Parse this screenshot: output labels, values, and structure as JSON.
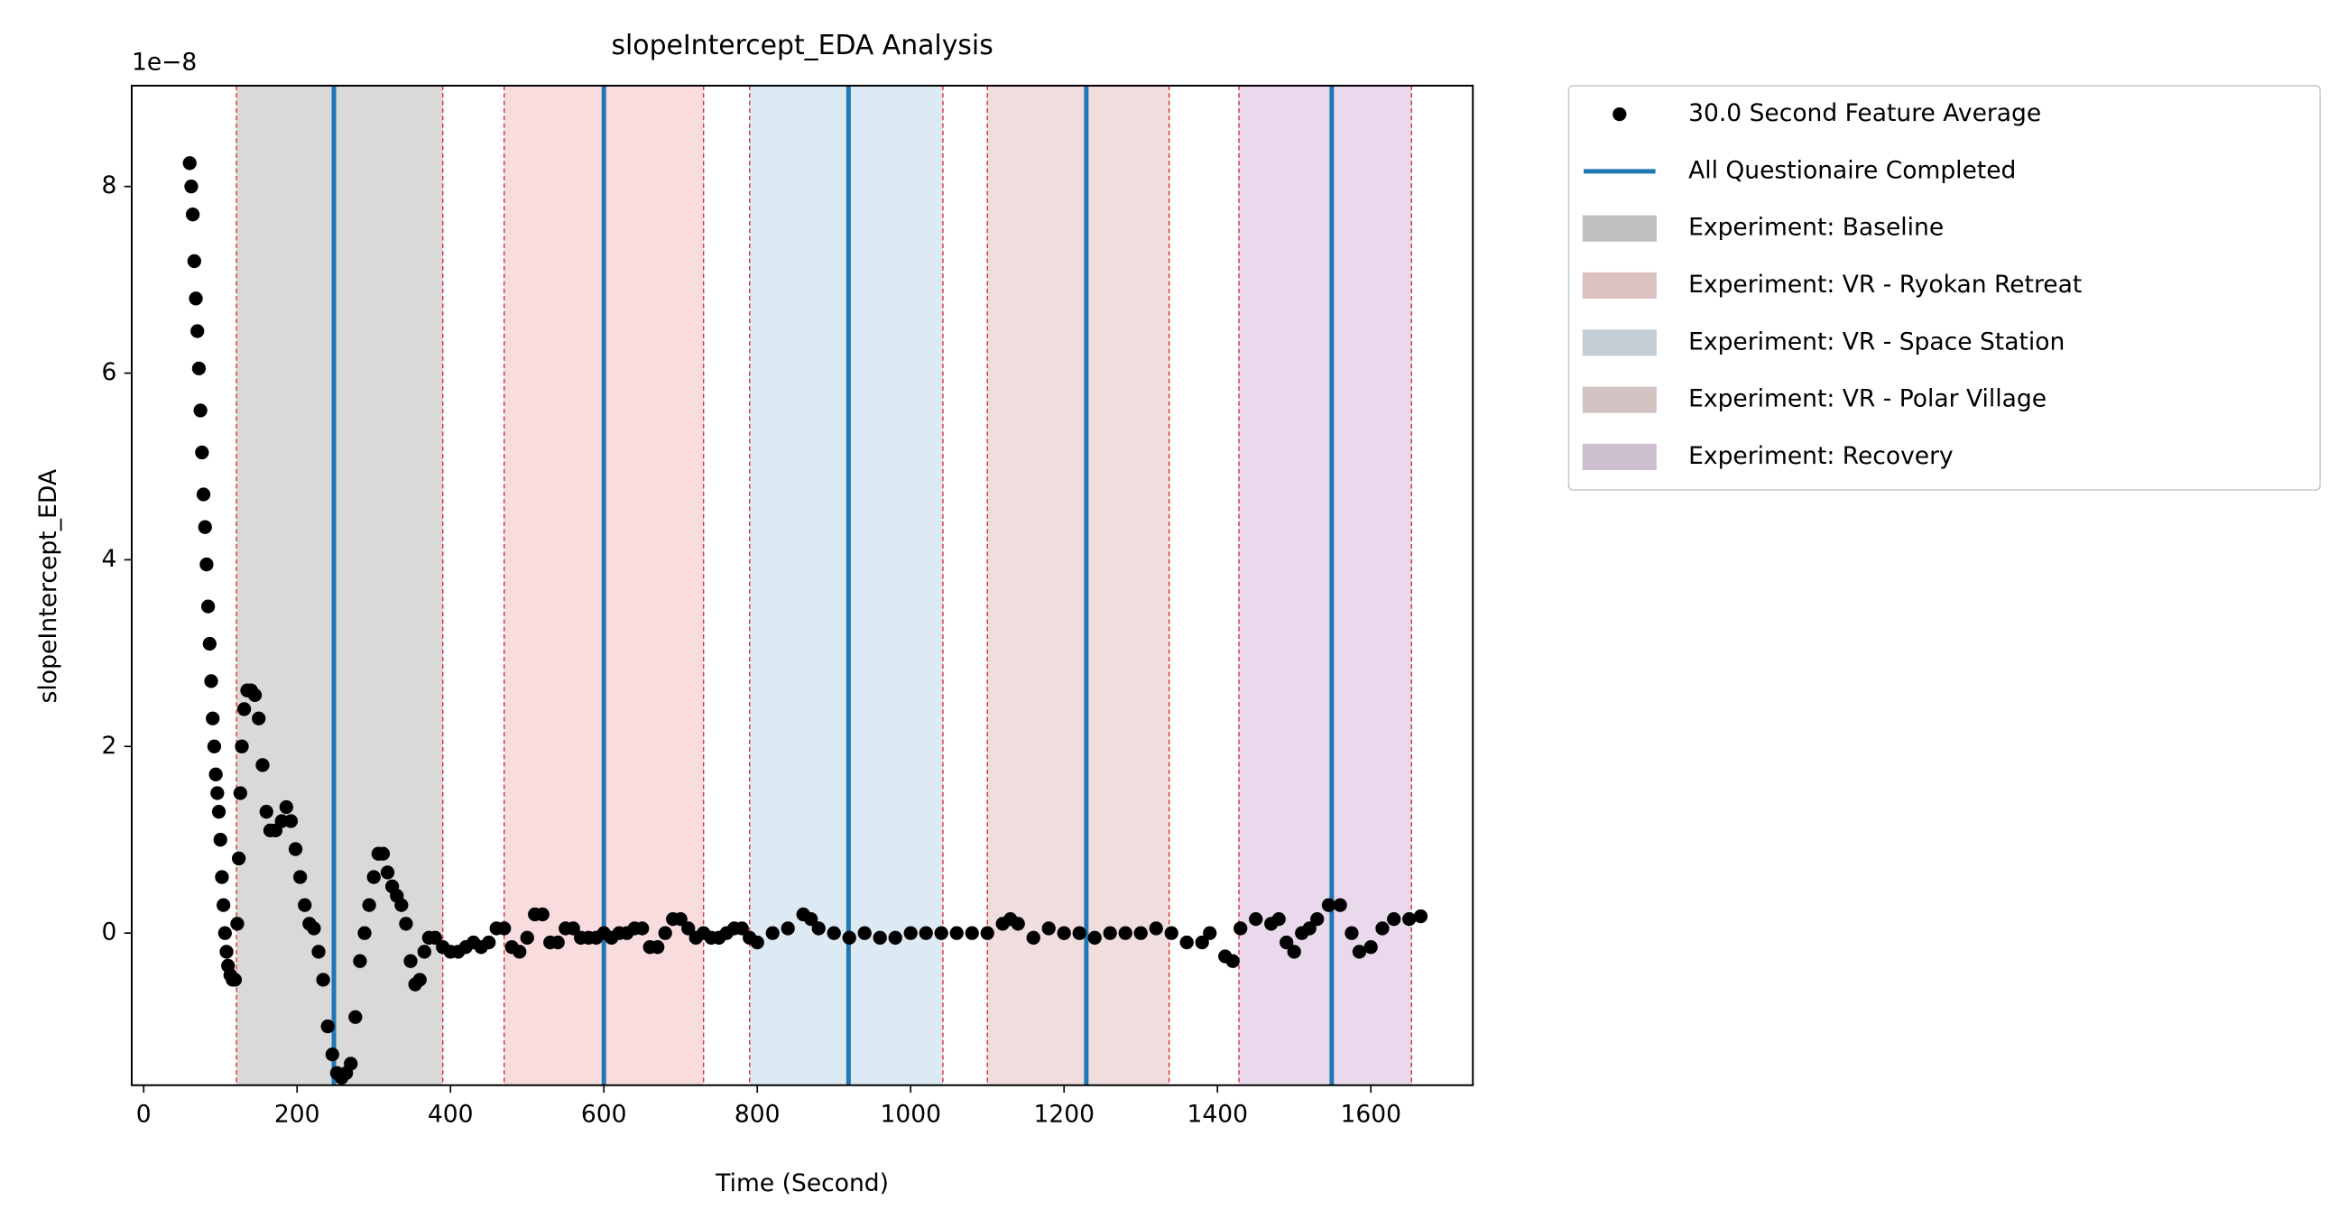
{
  "chart_data": {
    "type": "scatter",
    "title": "slopeIntercept_EDA Analysis",
    "xlabel": "Time (Second)",
    "ylabel": "slopeIntercept_EDA",
    "offset_label": "1e−8",
    "xlim": [
      -15.6,
      1733
    ],
    "ylim": [
      -1.63,
      9.08
    ],
    "xticks": [
      0,
      200,
      400,
      600,
      800,
      1000,
      1200,
      1400,
      1600
    ],
    "yticks": [
      0,
      2,
      4,
      6,
      8
    ],
    "spans": [
      {
        "name": "Experiment: Baseline",
        "color": "#d9d9d9",
        "x": [
          121,
          390
        ]
      },
      {
        "name": "Experiment: VR - Ryokan Retreat",
        "color": "#f9dcdd",
        "x": [
          470,
          730
        ]
      },
      {
        "name": "Experiment: VR - Space Station",
        "color": "#dde9f3",
        "x": [
          790,
          1042
        ]
      },
      {
        "name": "Experiment: VR - Polar Village",
        "color": "#efdedd",
        "x": [
          1100,
          1337
        ]
      },
      {
        "name": "Experiment: Recovery",
        "color": "#ead9ec",
        "x": [
          1428,
          1653
        ]
      }
    ],
    "span_edge_color": "#d62728",
    "vlines": {
      "name": "All Questionaire Completed",
      "color": "#1f77b4",
      "x": [
        248,
        600,
        919,
        1229,
        1549
      ]
    },
    "series": [
      {
        "name": "30.0 Second Feature Average",
        "color": "#000000",
        "x": [
          60,
          62,
          64,
          66,
          68,
          70,
          72,
          74,
          76,
          78,
          80,
          82,
          84,
          86,
          88,
          90,
          92,
          94,
          96,
          98,
          100,
          102,
          104,
          106,
          108,
          110,
          113,
          116,
          119,
          122,
          124,
          126,
          128,
          131,
          135,
          140,
          145,
          150,
          155,
          160,
          165,
          172,
          180,
          186,
          192,
          198,
          204,
          210,
          216,
          222,
          228,
          234,
          240,
          246,
          252,
          258,
          264,
          270,
          276,
          282,
          288,
          294,
          300,
          306,
          312,
          318,
          324,
          330,
          336,
          342,
          348,
          354,
          360,
          366,
          372,
          380,
          390,
          400,
          410,
          420,
          430,
          440,
          450,
          460,
          470,
          480,
          490,
          500,
          510,
          520,
          530,
          540,
          550,
          560,
          570,
          580,
          590,
          600,
          610,
          620,
          630,
          640,
          650,
          660,
          670,
          680,
          690,
          700,
          710,
          720,
          730,
          740,
          750,
          760,
          770,
          780,
          790,
          800,
          820,
          840,
          860,
          870,
          880,
          900,
          920,
          940,
          960,
          980,
          1000,
          1020,
          1040,
          1060,
          1080,
          1100,
          1120,
          1130,
          1140,
          1160,
          1180,
          1200,
          1220,
          1240,
          1260,
          1280,
          1300,
          1320,
          1340,
          1360,
          1380,
          1390,
          1410,
          1420,
          1430,
          1450,
          1470,
          1480,
          1490,
          1500,
          1510,
          1520,
          1530,
          1545,
          1560,
          1575,
          1585,
          1600,
          1615,
          1630,
          1650,
          1665
        ],
        "values": [
          8.25,
          8.0,
          7.7,
          7.2,
          6.8,
          6.45,
          6.05,
          5.6,
          5.15,
          4.7,
          4.35,
          3.95,
          3.5,
          3.1,
          2.7,
          2.3,
          2.0,
          1.7,
          1.5,
          1.3,
          1.0,
          0.6,
          0.3,
          0.0,
          -0.2,
          -0.35,
          -0.45,
          -0.5,
          -0.5,
          0.1,
          0.8,
          1.5,
          2.0,
          2.4,
          2.6,
          2.6,
          2.55,
          2.3,
          1.8,
          1.3,
          1.1,
          1.1,
          1.2,
          1.35,
          1.2,
          0.9,
          0.6,
          0.3,
          0.1,
          0.05,
          -0.2,
          -0.5,
          -1.0,
          -1.3,
          -1.5,
          -1.55,
          -1.5,
          -1.4,
          -0.9,
          -0.3,
          0.0,
          0.3,
          0.6,
          0.85,
          0.85,
          0.65,
          0.5,
          0.4,
          0.3,
          0.1,
          -0.3,
          -0.55,
          -0.5,
          -0.2,
          -0.05,
          -0.05,
          -0.15,
          -0.2,
          -0.2,
          -0.15,
          -0.1,
          -0.15,
          -0.1,
          0.05,
          0.05,
          -0.15,
          -0.2,
          -0.05,
          0.2,
          0.2,
          -0.1,
          -0.1,
          0.05,
          0.05,
          -0.05,
          -0.05,
          -0.05,
          0.0,
          -0.05,
          0.0,
          0.0,
          0.05,
          0.05,
          -0.15,
          -0.15,
          0.0,
          0.15,
          0.15,
          0.05,
          -0.05,
          0.0,
          -0.05,
          -0.05,
          0.0,
          0.05,
          0.05,
          -0.05,
          -0.1,
          0.0,
          0.05,
          0.2,
          0.15,
          0.05,
          0.0,
          -0.05,
          0.0,
          -0.05,
          -0.05,
          0.0,
          0.0,
          0.0,
          0.0,
          0.0,
          0.0,
          0.1,
          0.15,
          0.1,
          -0.05,
          0.05,
          0.0,
          0.0,
          -0.05,
          0.0,
          0.0,
          0.0,
          0.05,
          0.0,
          -0.1,
          -0.1,
          0.0,
          -0.25,
          -0.3,
          0.05,
          0.15,
          0.1,
          0.15,
          -0.1,
          -0.2,
          0.0,
          0.05,
          0.15,
          0.3,
          0.3,
          0.0,
          -0.2,
          -0.15,
          0.05,
          0.15,
          0.15,
          0.18
        ]
      }
    ]
  }
}
